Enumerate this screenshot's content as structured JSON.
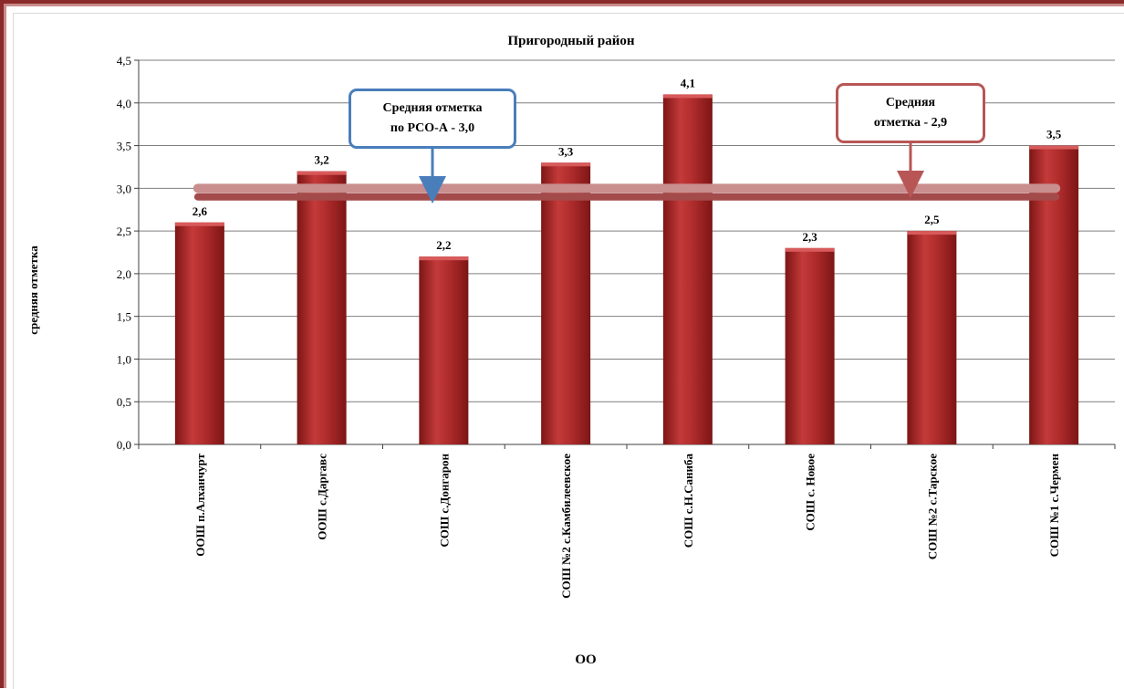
{
  "colors": {
    "bar": "#b02c2c",
    "bar_dark": "#7d1515",
    "bar_light": "#d85a5a",
    "avg_line": "#c98e8e",
    "avg_line_dark": "#a34b4b",
    "blue_callout": "#4a7ebb",
    "red_callout": "#b85656",
    "grid": "#7f7f7f"
  },
  "callouts": {
    "region_avg": "Средняя отметка\nпо РСО-А - 3,0",
    "district_avg": "Средняя\nотметка -  2,9"
  },
  "chart_data": {
    "type": "bar",
    "title": "Пригородный район",
    "xlabel": "ОО",
    "ylabel": "средняя отметка",
    "ylim": [
      0,
      4.5
    ],
    "yticks": [
      "0,0",
      "0,5",
      "1,0",
      "1,5",
      "2,0",
      "2,5",
      "3,0",
      "3,5",
      "4,0",
      "4,5"
    ],
    "categories": [
      "ООШ п.Алханчурт",
      "ООШ с.Даргавс",
      "СОШ с.Донгарон",
      "СОШ №2 с.Камбилеевское",
      "СОШ с.Н.Саниба",
      "СОШ с. Новое",
      "СОШ №2 с.Тарское",
      "СОШ №1 с.Чермен"
    ],
    "values": [
      2.6,
      3.2,
      2.2,
      3.3,
      4.1,
      2.3,
      2.5,
      3.5
    ],
    "value_labels": [
      "2,6",
      "3,2",
      "2,2",
      "3,3",
      "4,1",
      "2,3",
      "2,5",
      "3,5"
    ],
    "reference_lines": [
      {
        "value": 3.0
      },
      {
        "value": 2.9
      }
    ],
    "grid": true,
    "legend": "none"
  }
}
